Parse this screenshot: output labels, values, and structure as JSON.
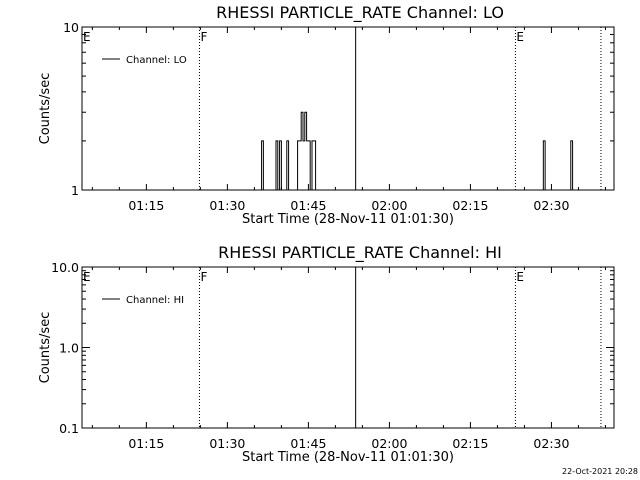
{
  "footer": {
    "timestamp": "22-Oct-2021 20:28"
  },
  "chart_data": [
    {
      "type": "line",
      "title": "RHESSI PARTICLE_RATE Channel: LO",
      "xlabel": "Start Time (28-Nov-11 01:01:30)",
      "ylabel": "Counts/sec",
      "xscale": "time",
      "xlim": [
        "01:03:05",
        "02:41:35"
      ],
      "xticks": [
        "01:15",
        "01:30",
        "01:45",
        "02:00",
        "02:15",
        "02:30"
      ],
      "yscale": "log",
      "ylim": [
        1,
        10
      ],
      "yticks": [
        "1",
        "10"
      ],
      "legend": {
        "position": "top-left",
        "entries": [
          "Channel: LO"
        ]
      },
      "series": [
        {
          "name": "Channel: LO",
          "points": [
            [
              "01:36:05",
              1
            ],
            [
              "01:36:20",
              2
            ],
            [
              "01:36:40",
              1
            ],
            [
              "01:38:40",
              1
            ],
            [
              "01:39:00",
              2
            ],
            [
              "01:39:20",
              1
            ],
            [
              "01:39:40",
              2
            ],
            [
              "01:40:00",
              1
            ],
            [
              "01:40:40",
              1
            ],
            [
              "01:41:00",
              2
            ],
            [
              "01:41:20",
              1
            ],
            [
              "01:42:40",
              1
            ],
            [
              "01:43:00",
              2
            ],
            [
              "01:43:20",
              2
            ],
            [
              "01:43:40",
              3
            ],
            [
              "01:44:00",
              2
            ],
            [
              "01:44:20",
              3
            ],
            [
              "01:44:40",
              2
            ],
            [
              "01:45:00",
              2
            ],
            [
              "01:45:20",
              1
            ],
            [
              "01:45:40",
              2
            ],
            [
              "01:46:00",
              2
            ],
            [
              "01:46:20",
              1
            ],
            [
              "02:28:10",
              1
            ],
            [
              "02:28:30",
              2
            ],
            [
              "02:28:50",
              1
            ],
            [
              "02:33:15",
              1
            ],
            [
              "02:33:35",
              2
            ],
            [
              "02:33:55",
              1
            ]
          ]
        }
      ],
      "markers": [
        {
          "label": "E",
          "time": "01:03:05",
          "style": "dotted"
        },
        {
          "label": "F",
          "time": "01:24:50",
          "style": "dotted"
        },
        {
          "label": "",
          "time": "01:53:45",
          "style": "solid"
        },
        {
          "label": "E",
          "time": "02:23:20",
          "style": "dotted"
        },
        {
          "label": "",
          "time": "02:39:10",
          "style": "dotted"
        }
      ]
    },
    {
      "type": "line",
      "title": "RHESSI PARTICLE_RATE Channel: HI",
      "xlabel": "Start Time (28-Nov-11 01:01:30)",
      "ylabel": "Counts/sec",
      "xscale": "time",
      "xlim": [
        "01:03:05",
        "02:41:35"
      ],
      "xticks": [
        "01:15",
        "01:30",
        "01:45",
        "02:00",
        "02:15",
        "02:30"
      ],
      "yscale": "log",
      "ylim": [
        0.1,
        10
      ],
      "yticks": [
        "0.1",
        "1.0",
        "10.0"
      ],
      "legend": {
        "position": "top-left",
        "entries": [
          "Channel: HI"
        ]
      },
      "series": [
        {
          "name": "Channel: HI",
          "points": []
        }
      ],
      "markers": [
        {
          "label": "E",
          "time": "01:03:05",
          "style": "dotted"
        },
        {
          "label": "F",
          "time": "01:24:50",
          "style": "dotted"
        },
        {
          "label": "",
          "time": "01:53:45",
          "style": "solid"
        },
        {
          "label": "E",
          "time": "02:23:20",
          "style": "dotted"
        },
        {
          "label": "",
          "time": "02:39:10",
          "style": "dotted"
        }
      ]
    }
  ]
}
